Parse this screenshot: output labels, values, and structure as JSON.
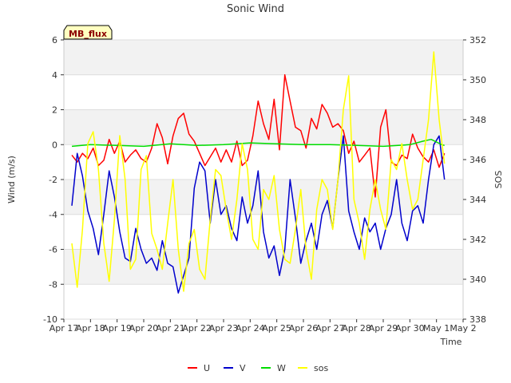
{
  "chart_data": {
    "type": "line",
    "title": "Sonic Wind",
    "xlabel": "Time",
    "ylabel": "Wind (m/s)",
    "y2label": "SOS",
    "badge": "MB_flux",
    "xlim": [
      0,
      15
    ],
    "ylim": [
      -10,
      6
    ],
    "y2lim": [
      338,
      352
    ],
    "x_ticks": [
      0,
      1,
      2,
      3,
      4,
      5,
      6,
      7,
      8,
      9,
      10,
      11,
      12,
      13,
      14,
      15
    ],
    "x_tick_labels": [
      "Apr 17",
      "Apr 18",
      "Apr 19",
      "Apr 20",
      "Apr 21",
      "Apr 22",
      "Apr 23",
      "Apr 24",
      "Apr 25",
      "Apr 26",
      "Apr 27",
      "Apr 28",
      "Apr 29",
      "Apr 30",
      "May 1",
      "May 2"
    ],
    "y_ticks": [
      -10,
      -8,
      -6,
      -4,
      -2,
      0,
      2,
      4,
      6
    ],
    "y2_ticks": [
      338,
      340,
      342,
      344,
      346,
      348,
      350,
      352
    ],
    "legend": [
      "U",
      "V",
      "W",
      "sos"
    ],
    "colors": {
      "U": "#ff0000",
      "V": "#0000cc",
      "W": "#00dd00",
      "sos": "#ffff00"
    },
    "series": [
      {
        "name": "U",
        "axis": "left",
        "color": "#ff0000",
        "x": [
          0.3,
          0.5,
          0.7,
          0.9,
          1.1,
          1.3,
          1.5,
          1.7,
          1.9,
          2.1,
          2.3,
          2.5,
          2.7,
          2.9,
          3.1,
          3.3,
          3.5,
          3.7,
          3.9,
          4.1,
          4.3,
          4.5,
          4.7,
          4.9,
          5.1,
          5.3,
          5.5,
          5.7,
          5.9,
          6.1,
          6.3,
          6.5,
          6.7,
          6.9,
          7.1,
          7.3,
          7.5,
          7.7,
          7.9,
          8.1,
          8.3,
          8.5,
          8.7,
          8.9,
          9.1,
          9.3,
          9.5,
          9.7,
          9.9,
          10.1,
          10.3,
          10.5,
          10.7,
          10.9,
          11.1,
          11.3,
          11.5,
          11.7,
          11.9,
          12.1,
          12.3,
          12.5,
          12.7,
          12.9,
          13.1,
          13.3,
          13.5,
          13.7,
          13.9,
          14.1,
          14.3
        ],
        "values": [
          -0.6,
          -1.0,
          -0.5,
          -0.8,
          -0.2,
          -1.2,
          -0.9,
          0.3,
          -0.5,
          0.2,
          -1.0,
          -0.6,
          -0.3,
          -0.8,
          -1.0,
          -0.2,
          1.2,
          0.4,
          -1.1,
          0.5,
          1.5,
          1.8,
          0.6,
          0.2,
          -0.5,
          -1.2,
          -0.7,
          -0.2,
          -1.0,
          -0.3,
          -1.0,
          0.2,
          -1.2,
          -0.9,
          0.5,
          2.5,
          1.2,
          0.3,
          2.6,
          -0.3,
          4.0,
          2.5,
          1.0,
          0.8,
          -0.2,
          1.5,
          0.9,
          2.3,
          1.8,
          1.0,
          1.2,
          0.8,
          -0.5,
          0.2,
          -1.0,
          -0.6,
          -0.2,
          -3.0,
          1.0,
          2.0,
          -1.0,
          -1.2,
          -0.6,
          -0.8,
          0.6,
          -0.2,
          -0.7,
          -1.0,
          -0.3,
          -1.3,
          -0.5
        ]
      },
      {
        "name": "V",
        "axis": "left",
        "color": "#0000cc",
        "x": [
          0.3,
          0.5,
          0.7,
          0.9,
          1.1,
          1.3,
          1.5,
          1.7,
          1.9,
          2.1,
          2.3,
          2.5,
          2.7,
          2.9,
          3.1,
          3.3,
          3.5,
          3.7,
          3.9,
          4.1,
          4.3,
          4.5,
          4.7,
          4.9,
          5.1,
          5.3,
          5.5,
          5.7,
          5.9,
          6.1,
          6.3,
          6.5,
          6.7,
          6.9,
          7.1,
          7.3,
          7.5,
          7.7,
          7.9,
          8.1,
          8.3,
          8.5,
          8.7,
          8.9,
          9.1,
          9.3,
          9.5,
          9.7,
          9.9,
          10.1,
          10.3,
          10.5,
          10.7,
          10.9,
          11.1,
          11.3,
          11.5,
          11.7,
          11.9,
          12.1,
          12.3,
          12.5,
          12.7,
          12.9,
          13.1,
          13.3,
          13.5,
          13.7,
          13.9,
          14.1,
          14.3
        ],
        "values": [
          -3.5,
          -0.5,
          -1.8,
          -3.8,
          -4.8,
          -6.3,
          -4.0,
          -1.5,
          -3.0,
          -5.0,
          -6.5,
          -6.7,
          -4.8,
          -6.0,
          -6.8,
          -6.5,
          -7.2,
          -5.5,
          -6.8,
          -7.0,
          -8.5,
          -7.5,
          -6.5,
          -2.5,
          -1.0,
          -1.5,
          -4.5,
          -2.0,
          -4.0,
          -3.5,
          -4.8,
          -5.5,
          -3.0,
          -4.5,
          -3.5,
          -1.5,
          -5.0,
          -6.5,
          -5.8,
          -7.5,
          -6.0,
          -2.0,
          -4.2,
          -6.8,
          -5.5,
          -4.5,
          -6.0,
          -4.0,
          -3.2,
          -4.8,
          -2.0,
          0.5,
          -3.8,
          -5.0,
          -6.0,
          -4.2,
          -5.0,
          -4.5,
          -6.0,
          -4.8,
          -4.0,
          -2.0,
          -4.5,
          -5.5,
          -3.8,
          -3.5,
          -4.5,
          -2.0,
          0.0,
          0.5,
          -2.0
        ]
      },
      {
        "name": "W",
        "axis": "left",
        "color": "#00dd00",
        "x": [
          0.3,
          1.0,
          2.0,
          3.0,
          4.0,
          5.0,
          6.0,
          7.0,
          8.0,
          9.0,
          10.0,
          11.0,
          12.0,
          13.0,
          13.5,
          13.8,
          14.0,
          14.2,
          14.3
        ],
        "values": [
          -0.1,
          0.0,
          -0.05,
          -0.1,
          0.05,
          -0.05,
          0.0,
          0.1,
          0.05,
          0.0,
          0.0,
          -0.05,
          -0.1,
          0.0,
          0.2,
          0.3,
          0.15,
          0.0,
          -0.05
        ]
      },
      {
        "name": "sos",
        "axis": "right",
        "color": "#ffff00",
        "x": [
          0.3,
          0.5,
          0.7,
          0.9,
          1.1,
          1.3,
          1.5,
          1.7,
          1.9,
          2.1,
          2.3,
          2.5,
          2.7,
          2.9,
          3.1,
          3.3,
          3.5,
          3.7,
          3.9,
          4.1,
          4.3,
          4.5,
          4.7,
          4.9,
          5.1,
          5.3,
          5.5,
          5.7,
          5.9,
          6.1,
          6.3,
          6.5,
          6.7,
          6.9,
          7.1,
          7.3,
          7.5,
          7.7,
          7.9,
          8.1,
          8.3,
          8.5,
          8.7,
          8.9,
          9.1,
          9.3,
          9.5,
          9.7,
          9.9,
          10.1,
          10.3,
          10.5,
          10.7,
          10.9,
          11.1,
          11.3,
          11.5,
          11.7,
          11.9,
          12.1,
          12.3,
          12.5,
          12.7,
          12.9,
          13.1,
          13.3,
          13.5,
          13.7,
          13.9,
          14.1,
          14.3
        ],
        "values": [
          341.8,
          339.6,
          342.5,
          346.8,
          347.4,
          345.5,
          341.8,
          339.9,
          343.0,
          347.2,
          345.0,
          340.5,
          341.0,
          345.5,
          346.2,
          342.3,
          341.5,
          340.5,
          342.8,
          345.0,
          341.5,
          339.4,
          341.8,
          342.5,
          340.5,
          340.0,
          343.0,
          345.5,
          345.2,
          343.5,
          342.0,
          344.0,
          346.8,
          345.5,
          342.0,
          341.5,
          344.5,
          344.0,
          345.2,
          342.5,
          341.0,
          340.8,
          342.5,
          344.5,
          341.5,
          340.0,
          343.5,
          345.0,
          344.5,
          342.5,
          345.0,
          348.5,
          350.2,
          344.0,
          342.8,
          341.0,
          343.5,
          345.0,
          343.5,
          342.5,
          346.0,
          345.5,
          346.8,
          345.0,
          343.5,
          344.0,
          346.0,
          348.0,
          351.4,
          348.0,
          345.8
        ]
      }
    ]
  }
}
